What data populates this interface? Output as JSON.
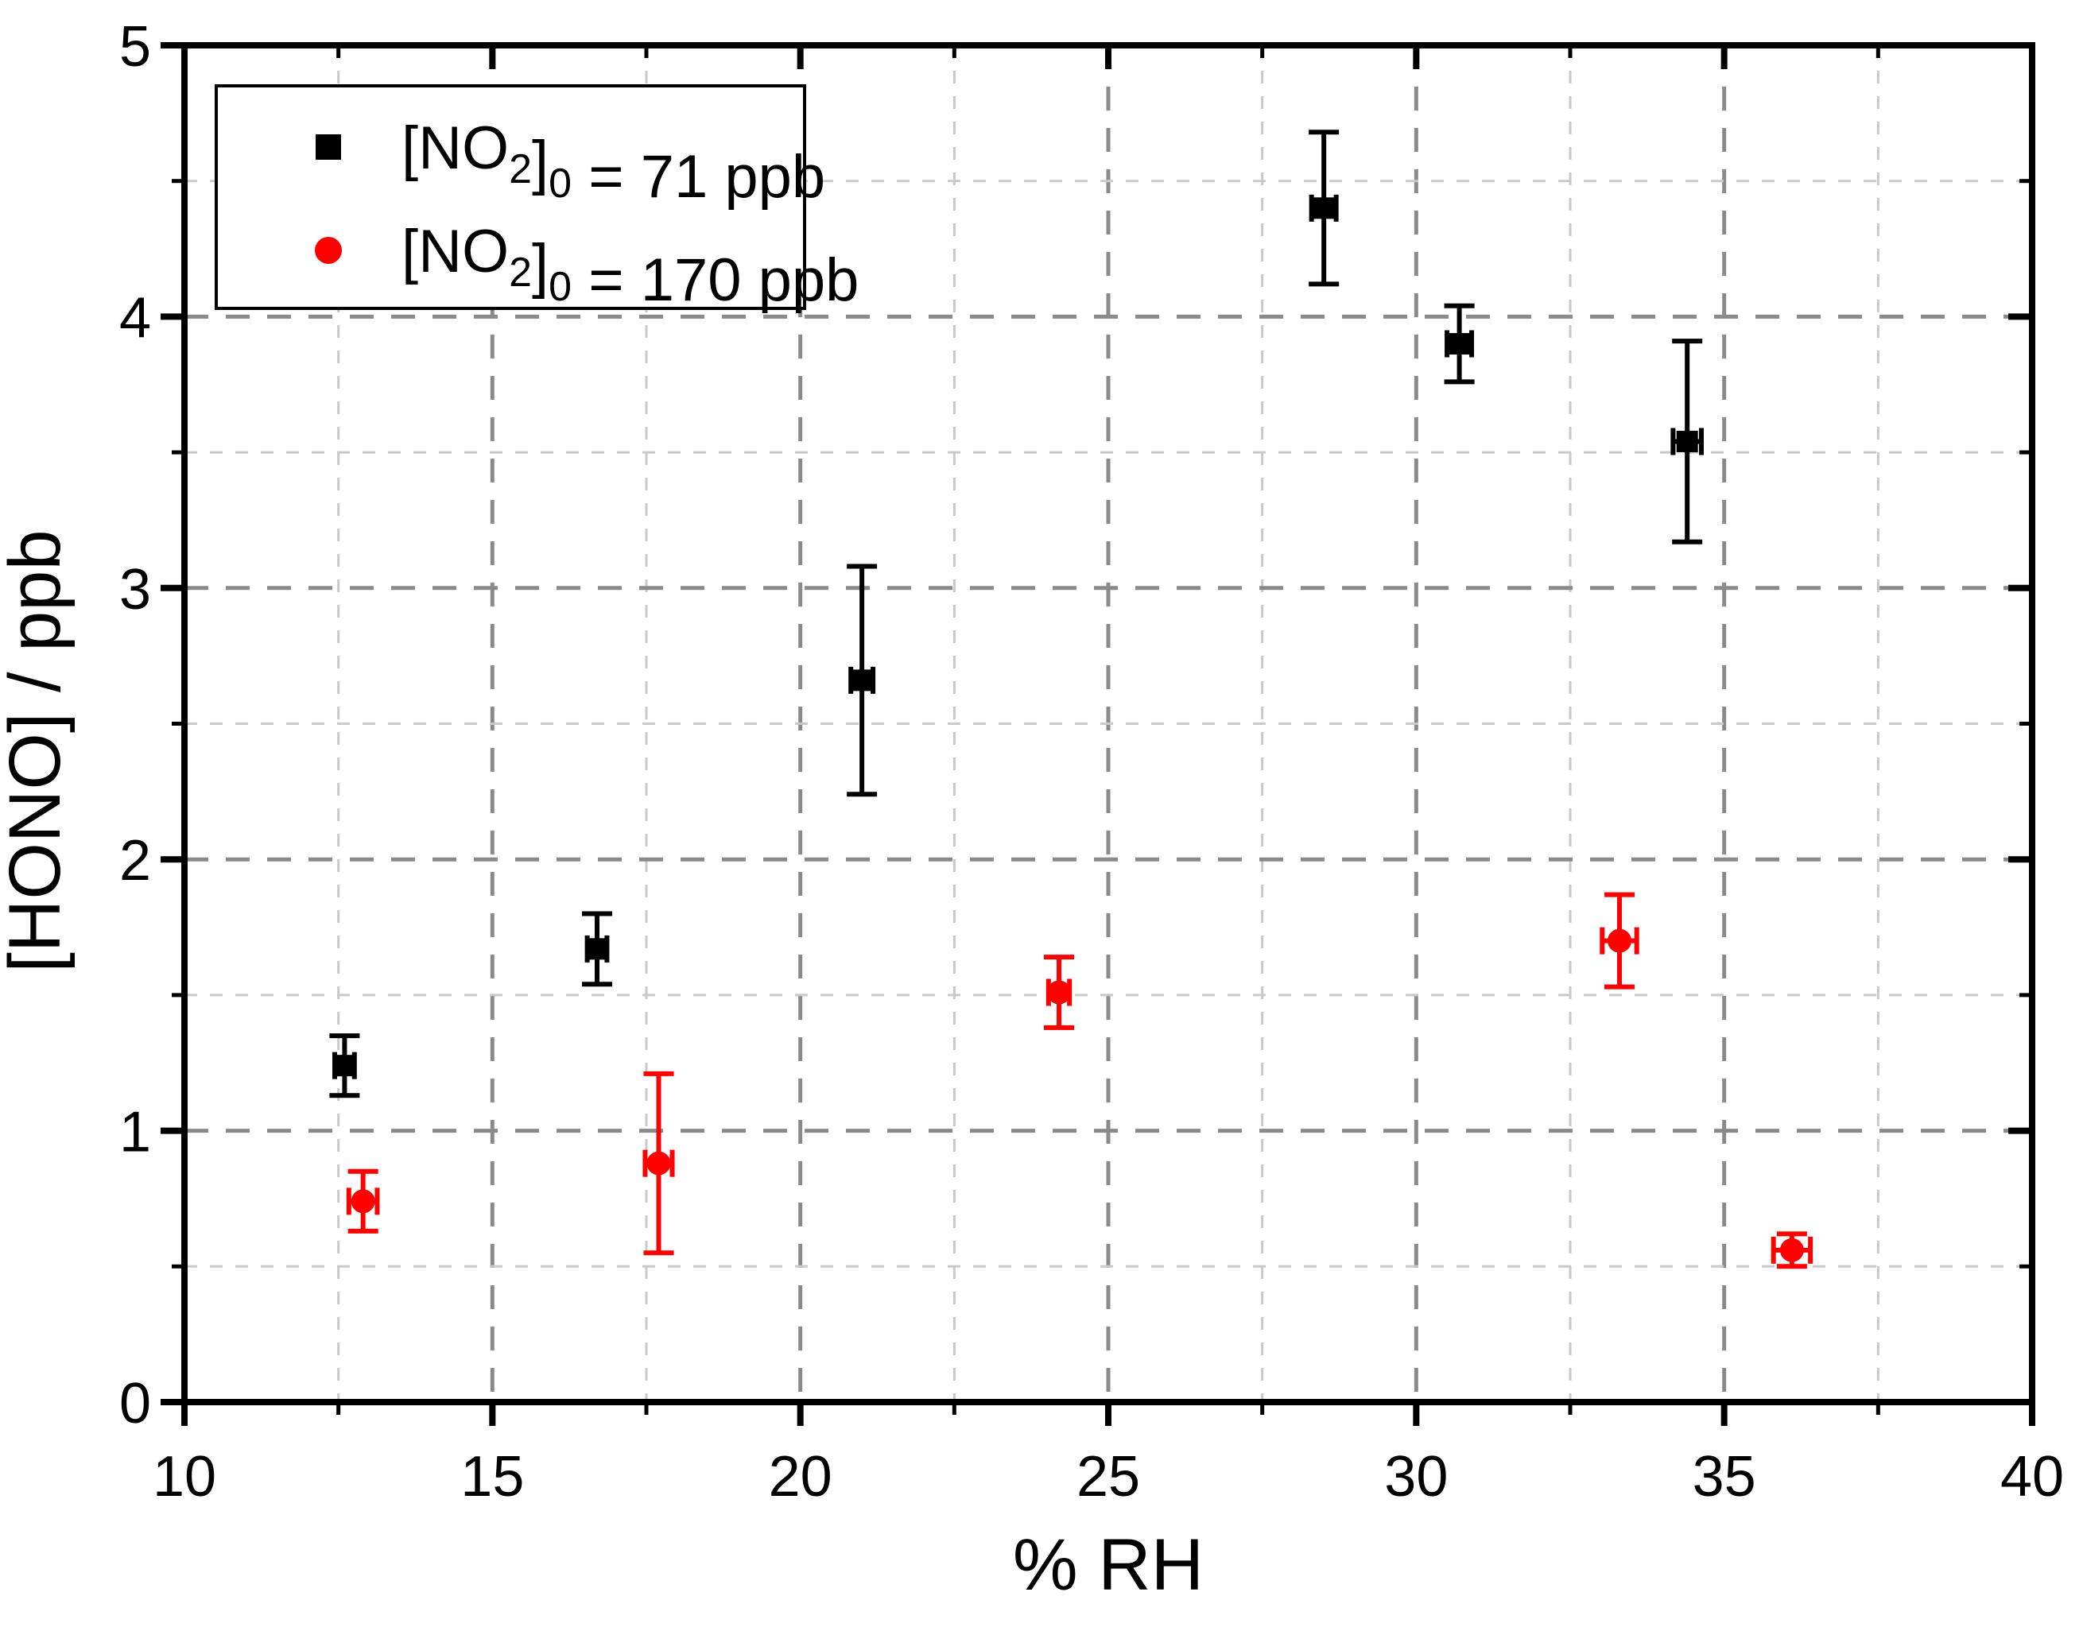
{
  "chart_data": {
    "type": "scatter",
    "title": "",
    "xlabel": "% RH",
    "ylabel": "[HONO] / ppb",
    "xlim": [
      10,
      40
    ],
    "ylim": [
      0,
      5
    ],
    "x_major_ticks": [
      10,
      15,
      20,
      25,
      30,
      35,
      40
    ],
    "x_minor_ticks": [
      12.5,
      17.5,
      22.5,
      27.5,
      32.5,
      37.5
    ],
    "y_major_ticks": [
      0,
      1,
      2,
      3,
      4,
      5
    ],
    "y_minor_ticks": [
      0.5,
      1.5,
      2.5,
      3.5,
      4.5
    ],
    "grid": {
      "show": true,
      "style": "dashed",
      "major_color": "#8a8a8a",
      "minor_color": "#c9c9c9"
    },
    "legend": {
      "position": "top-left",
      "border_color": "#000000",
      "background": "#ffffff"
    },
    "colors": {
      "series1": "#000000",
      "series2": "#ff0000",
      "axis": "#000000"
    },
    "series": [
      {
        "name": "[NO2]0 = 71 ppb",
        "label_parts": [
          {
            "t": "[NO"
          },
          {
            "t": "2",
            "sub": true
          },
          {
            "t": "]"
          },
          {
            "t": "0",
            "sub": true
          },
          {
            "t": " = 71 ppb"
          }
        ],
        "marker": "square",
        "color": "#000000",
        "points": [
          {
            "x": 12.6,
            "y": 1.24,
            "ey": 0.11,
            "ex": 0.16
          },
          {
            "x": 16.7,
            "y": 1.67,
            "ey": 0.13,
            "ex": 0.16
          },
          {
            "x": 21.0,
            "y": 2.66,
            "ey": 0.42,
            "ex": 0.18
          },
          {
            "x": 28.5,
            "y": 4.4,
            "ey": 0.28,
            "ex": 0.2
          },
          {
            "x": 30.7,
            "y": 3.9,
            "ey": 0.14,
            "ex": 0.2
          },
          {
            "x": 34.4,
            "y": 3.54,
            "ey": 0.37,
            "ex": 0.23
          }
        ]
      },
      {
        "name": "[NO2]0 = 170 ppb",
        "label_parts": [
          {
            "t": "[NO"
          },
          {
            "t": "2",
            "sub": true
          },
          {
            "t": "]"
          },
          {
            "t": "0",
            "sub": true
          },
          {
            "t": " = 170 ppb"
          }
        ],
        "marker": "circle",
        "color": "#ff0000",
        "points": [
          {
            "x": 12.9,
            "y": 0.74,
            "ey": 0.11,
            "ex": 0.23
          },
          {
            "x": 17.7,
            "y": 0.88,
            "ey": 0.33,
            "ex": 0.22
          },
          {
            "x": 24.2,
            "y": 1.51,
            "ey": 0.13,
            "ex": 0.17
          },
          {
            "x": 33.3,
            "y": 1.7,
            "ey": 0.17,
            "ex": 0.28
          },
          {
            "x": 36.1,
            "y": 0.56,
            "ey": 0.06,
            "ex": 0.3
          }
        ]
      }
    ]
  }
}
